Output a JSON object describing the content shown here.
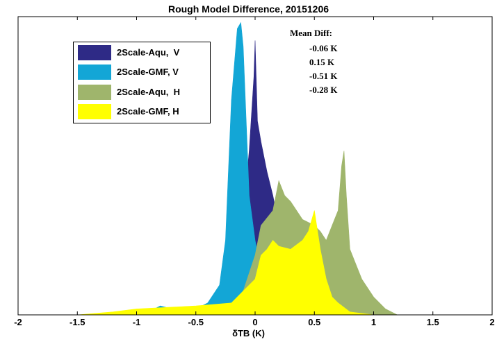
{
  "chart_data": {
    "type": "area",
    "title": "Rough Model Difference,  20151206",
    "xlabel": "δTB (K)",
    "ylabel": "",
    "xlim": [
      -2,
      2
    ],
    "xticks": [
      "-2",
      "-1.5",
      "-1",
      "-0.5",
      "0",
      "0.5",
      "1",
      "1.5",
      "2"
    ],
    "ylim": [
      0,
      1
    ],
    "yticks_visible": false,
    "grid": false,
    "legend_position": "top-left",
    "series": [
      {
        "name": "2Scale-Aqu,  V",
        "color": "#2e2a86",
        "x": [
          -2.0,
          -1.0,
          -0.3,
          -0.2,
          -0.12,
          -0.05,
          -0.01,
          0.0,
          0.02,
          0.05,
          0.1,
          0.15,
          0.2,
          0.3,
          0.4,
          0.6,
          1.0,
          2.0
        ],
        "y": [
          0.0,
          0.0,
          0.01,
          0.05,
          0.25,
          0.55,
          0.8,
          0.92,
          0.65,
          0.58,
          0.48,
          0.4,
          0.3,
          0.15,
          0.05,
          0.01,
          0.0,
          0.0
        ]
      },
      {
        "name": "2Scale-GMF, V",
        "color": "#13a6d6",
        "x": [
          -2.0,
          -1.2,
          -0.9,
          -0.8,
          -0.7,
          -0.5,
          -0.4,
          -0.3,
          -0.25,
          -0.2,
          -0.15,
          -0.12,
          -0.1,
          -0.05,
          0.0,
          0.05,
          0.1,
          0.2,
          0.4,
          1.0,
          2.0
        ],
        "y": [
          0.0,
          0.0,
          0.01,
          0.03,
          0.02,
          0.02,
          0.04,
          0.1,
          0.25,
          0.72,
          0.96,
          0.98,
          0.9,
          0.4,
          0.25,
          0.15,
          0.08,
          0.03,
          0.01,
          0.0,
          0.0
        ]
      },
      {
        "name": "2Scale-Aqu,  H",
        "color": "#9fb56c",
        "x": [
          -2.0,
          -1.0,
          -0.4,
          -0.2,
          -0.1,
          0.0,
          0.05,
          0.15,
          0.2,
          0.25,
          0.3,
          0.4,
          0.5,
          0.55,
          0.6,
          0.65,
          0.7,
          0.73,
          0.75,
          0.77,
          0.8,
          0.9,
          1.0,
          1.1,
          1.2,
          2.0
        ],
        "y": [
          0.0,
          0.0,
          0.01,
          0.03,
          0.08,
          0.2,
          0.3,
          0.35,
          0.45,
          0.4,
          0.38,
          0.32,
          0.3,
          0.28,
          0.25,
          0.3,
          0.35,
          0.5,
          0.55,
          0.4,
          0.22,
          0.12,
          0.06,
          0.02,
          0.0,
          0.0
        ]
      },
      {
        "name": "2Scale-GMF, H",
        "color": "#ffff00",
        "x": [
          -2.0,
          -1.5,
          -1.2,
          -1.0,
          -0.5,
          -0.2,
          -0.1,
          0.0,
          0.05,
          0.1,
          0.15,
          0.2,
          0.3,
          0.4,
          0.45,
          0.5,
          0.55,
          0.6,
          0.65,
          0.7,
          0.8,
          1.0,
          2.0
        ],
        "y": [
          0.0,
          0.0,
          0.01,
          0.02,
          0.03,
          0.04,
          0.08,
          0.12,
          0.2,
          0.22,
          0.25,
          0.23,
          0.22,
          0.25,
          0.28,
          0.35,
          0.22,
          0.12,
          0.06,
          0.04,
          0.01,
          0.0,
          0.0
        ]
      }
    ],
    "annotations": {
      "heading": "Mean Diff:",
      "values": [
        "-0.06 K",
        "0.15 K",
        "-0.51 K",
        "-0.28 K"
      ]
    }
  }
}
